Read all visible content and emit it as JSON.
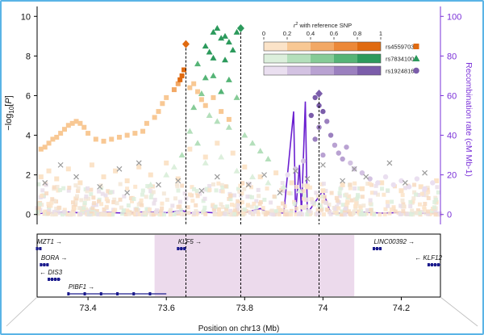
{
  "chart_data": {
    "type": "scatter",
    "title": "",
    "xlabel": "Position on chr13 (Mb)",
    "ylabel": "-log10[P]",
    "y2label": "Recombination rate (cM Mb-1)",
    "xlim": [
      73.27,
      74.3
    ],
    "ylim": [
      -0.5,
      10.5
    ],
    "y2lim": [
      -5,
      105
    ],
    "x_ticks": [
      "73.4",
      "73.6",
      "73.8",
      "74",
      "74.2"
    ],
    "x_tick_values": [
      73.4,
      73.6,
      73.8,
      74.0,
      74.2
    ],
    "y_ticks": [
      "0",
      "2",
      "4",
      "6",
      "8",
      "10"
    ],
    "y_tick_values": [
      0,
      2,
      4,
      6,
      8,
      10
    ],
    "y2_ticks": [
      "0",
      "20",
      "40",
      "60",
      "80",
      "100"
    ],
    "y2_tick_values": [
      0,
      20,
      40,
      60,
      80,
      100
    ],
    "grid": false,
    "legend": {
      "title": "r2 with reference SNP",
      "placement": "top-right",
      "scale_ticks": [
        "0",
        "0.2",
        "0.4",
        "0.6",
        "0.8",
        "1"
      ],
      "entries": [
        {
          "name": "rs45597035",
          "shape": "square",
          "colors": [
            "#fbe3c8",
            "#f8c894",
            "#f2a865",
            "#ec8838",
            "#e06a10"
          ]
        },
        {
          "name": "rs78341008",
          "shape": "triangle",
          "colors": [
            "#dcefdc",
            "#b4dfbb",
            "#86cb97",
            "#55b476",
            "#2c9a5c"
          ]
        },
        {
          "name": "rs1924816",
          "shape": "circle",
          "colors": [
            "#eadff0",
            "#d3c2e2",
            "#b9a2d2",
            "#9b80bf",
            "#7b5daa"
          ]
        }
      ]
    },
    "reference_snps": [
      {
        "name": "rs45597035",
        "x": 73.65,
        "y": 8.6,
        "color": "#e06a10",
        "shape": "diamond"
      },
      {
        "name": "rs78341008",
        "x": 73.79,
        "y": 9.4,
        "color": "#2c9a5c",
        "shape": "diamond"
      },
      {
        "name": "rs1924816",
        "x": 73.99,
        "y": 6.1,
        "color": "#7b5daa",
        "shape": "diamond"
      }
    ],
    "series": [
      {
        "name": "rs45597035 locus",
        "shape": "square",
        "points": [
          [
            73.28,
            3.3,
            0.3
          ],
          [
            73.29,
            3.4,
            0.3
          ],
          [
            73.3,
            3.6,
            0.3
          ],
          [
            73.31,
            3.8,
            0.3
          ],
          [
            73.32,
            3.9,
            0.3
          ],
          [
            73.33,
            4.1,
            0.3
          ],
          [
            73.34,
            4.3,
            0.3
          ],
          [
            73.35,
            4.5,
            0.3
          ],
          [
            73.36,
            4.6,
            0.3
          ],
          [
            73.37,
            4.7,
            0.3
          ],
          [
            73.38,
            4.6,
            0.3
          ],
          [
            73.39,
            4.4,
            0.3
          ],
          [
            73.4,
            4.1,
            0.3
          ],
          [
            73.42,
            3.8,
            0.3
          ],
          [
            73.44,
            3.7,
            0.3
          ],
          [
            73.46,
            3.8,
            0.3
          ],
          [
            73.48,
            3.9,
            0.3
          ],
          [
            73.5,
            4.0,
            0.3
          ],
          [
            73.52,
            4.1,
            0.3
          ],
          [
            73.54,
            4.2,
            0.3
          ],
          [
            73.55,
            4.6,
            0.3
          ],
          [
            73.57,
            4.9,
            0.3
          ],
          [
            73.58,
            5.2,
            0.3
          ],
          [
            73.59,
            5.6,
            0.3
          ],
          [
            73.6,
            5.9,
            0.3
          ],
          [
            73.62,
            6.3,
            0.4
          ],
          [
            73.63,
            6.6,
            0.5
          ],
          [
            73.64,
            7.0,
            0.9
          ],
          [
            73.645,
            7.3,
            0.9
          ],
          [
            73.635,
            6.8,
            0.9
          ],
          [
            73.66,
            6.4,
            0.3
          ],
          [
            73.67,
            6.6,
            0.3
          ],
          [
            73.68,
            6.2,
            0.3
          ],
          [
            73.69,
            5.8,
            0.3
          ],
          [
            73.7,
            5.5,
            0.3
          ],
          [
            73.72,
            5.9,
            0.3
          ],
          [
            73.74,
            5.2,
            0.3
          ],
          [
            73.76,
            4.8,
            0.3
          ],
          [
            73.28,
            1.9,
            0.1
          ],
          [
            73.3,
            2.2,
            0.1
          ],
          [
            73.32,
            1.8,
            0.1
          ],
          [
            73.35,
            2.3,
            0.1
          ],
          [
            73.38,
            1.6,
            0.1
          ],
          [
            73.41,
            2.5,
            0.1
          ],
          [
            73.44,
            1.9,
            0.1
          ],
          [
            73.47,
            2.2,
            0.1
          ],
          [
            73.5,
            1.7,
            0.1
          ],
          [
            73.53,
            2.4,
            0.1
          ],
          [
            73.56,
            2.0,
            0.1
          ],
          [
            73.6,
            2.6,
            0.1
          ],
          [
            73.63,
            1.8,
            0.1
          ],
          [
            73.66,
            3.3,
            0.1
          ],
          [
            73.7,
            2.9,
            0.1
          ],
          [
            73.73,
            3.6,
            0.1
          ],
          [
            73.77,
            3.1,
            0.1
          ],
          [
            73.8,
            2.4,
            0.1
          ],
          [
            73.84,
            1.9,
            0.1
          ],
          [
            73.88,
            2.1,
            0.1
          ],
          [
            73.92,
            1.6,
            0.1
          ],
          [
            73.96,
            1.4,
            0.1
          ],
          [
            74.0,
            1.2,
            0.1
          ],
          [
            74.05,
            1.5,
            0.1
          ],
          [
            74.1,
            1.3,
            0.1
          ],
          [
            74.15,
            1.6,
            0.1
          ],
          [
            74.2,
            1.2,
            0.1
          ],
          [
            74.25,
            1.4,
            0.1
          ],
          [
            74.29,
            1.7,
            0.1
          ]
        ]
      },
      {
        "name": "rs78341008 locus",
        "shape": "triangle",
        "points": [
          [
            73.72,
            9.2,
            0.9
          ],
          [
            73.73,
            9.4,
            0.9
          ],
          [
            73.74,
            8.9,
            0.9
          ],
          [
            73.75,
            9.0,
            0.9
          ],
          [
            73.76,
            8.7,
            0.9
          ],
          [
            73.77,
            8.3,
            0.9
          ],
          [
            73.78,
            9.2,
            0.9
          ],
          [
            73.71,
            8.2,
            0.9
          ],
          [
            73.7,
            8.5,
            0.9
          ],
          [
            73.72,
            7.9,
            0.9
          ],
          [
            73.75,
            7.8,
            0.9
          ],
          [
            73.68,
            7.6,
            0.7
          ],
          [
            73.7,
            6.9,
            0.7
          ],
          [
            73.72,
            7.0,
            0.7
          ],
          [
            73.74,
            6.2,
            0.7
          ],
          [
            73.76,
            6.8,
            0.7
          ],
          [
            73.78,
            5.9,
            0.5
          ],
          [
            73.69,
            6.1,
            0.5
          ],
          [
            73.67,
            5.4,
            0.5
          ],
          [
            73.71,
            5.0,
            0.3
          ],
          [
            73.73,
            4.7,
            0.3
          ],
          [
            73.76,
            4.4,
            0.3
          ],
          [
            73.8,
            4.0,
            0.3
          ],
          [
            73.82,
            3.6,
            0.3
          ],
          [
            73.84,
            3.2,
            0.3
          ],
          [
            73.86,
            2.8,
            0.3
          ],
          [
            73.66,
            4.2,
            0.3
          ],
          [
            73.68,
            3.6,
            0.3
          ],
          [
            73.64,
            3.0,
            0.3
          ],
          [
            73.7,
            2.6,
            0.1
          ],
          [
            73.74,
            2.9,
            0.1
          ],
          [
            73.78,
            2.2,
            0.1
          ],
          [
            73.82,
            1.9,
            0.1
          ],
          [
            73.86,
            1.6,
            0.1
          ],
          [
            73.9,
            1.4,
            0.1
          ],
          [
            73.94,
            1.2,
            0.1
          ],
          [
            73.6,
            2.0,
            0.1
          ],
          [
            73.62,
            2.4,
            0.1
          ],
          [
            73.56,
            1.5,
            0.1
          ]
        ]
      },
      {
        "name": "rs1924816 locus",
        "shape": "circle",
        "points": [
          [
            73.98,
            5.9,
            0.9
          ],
          [
            73.99,
            5.5,
            0.9
          ],
          [
            74.0,
            5.2,
            0.9
          ],
          [
            73.97,
            5.0,
            0.9
          ],
          [
            74.01,
            4.7,
            0.7
          ],
          [
            73.99,
            4.4,
            0.7
          ],
          [
            74.02,
            4.0,
            0.7
          ],
          [
            73.98,
            3.8,
            0.7
          ],
          [
            74.03,
            3.5,
            0.5
          ],
          [
            74.04,
            3.1,
            0.5
          ],
          [
            74.05,
            2.8,
            0.5
          ],
          [
            74.06,
            3.4,
            0.5
          ],
          [
            74.0,
            3.0,
            0.5
          ],
          [
            74.07,
            2.6,
            0.3
          ],
          [
            74.08,
            2.3,
            0.3
          ],
          [
            74.1,
            2.1,
            0.3
          ],
          [
            74.12,
            1.8,
            0.3
          ],
          [
            73.95,
            2.7,
            0.3
          ],
          [
            73.93,
            2.3,
            0.3
          ],
          [
            73.91,
            2.0,
            0.1
          ],
          [
            74.14,
            1.6,
            0.1
          ],
          [
            74.16,
            1.9,
            0.1
          ],
          [
            74.18,
            1.5,
            0.1
          ],
          [
            74.2,
            1.7,
            0.1
          ],
          [
            74.22,
            1.4,
            0.1
          ],
          [
            74.24,
            1.8,
            0.1
          ],
          [
            74.26,
            1.3,
            0.1
          ],
          [
            74.28,
            1.6,
            0.1
          ]
        ]
      },
      {
        "name": "unlinked",
        "shape": "cross",
        "points": [
          [
            73.29,
            1.6
          ],
          [
            73.33,
            2.5
          ],
          [
            73.37,
            1.9
          ],
          [
            73.43,
            1.4
          ],
          [
            73.48,
            2.3
          ],
          [
            73.5,
            1.1
          ],
          [
            73.53,
            2.6
          ],
          [
            73.58,
            1.5
          ],
          [
            73.63,
            1.7
          ],
          [
            73.69,
            1.2
          ],
          [
            73.73,
            1.9
          ],
          [
            73.81,
            1.5
          ],
          [
            73.85,
            2.0
          ],
          [
            73.89,
            1.1
          ],
          [
            73.93,
            2.2
          ],
          [
            73.96,
            1.8
          ],
          [
            74.0,
            2.5
          ],
          [
            74.05,
            1.7
          ],
          [
            74.08,
            2.3
          ],
          [
            74.11,
            1.9
          ],
          [
            74.17,
            2.6
          ],
          [
            74.21,
            1.6
          ],
          [
            74.26,
            2.1
          ]
        ]
      }
    ],
    "recombination": {
      "name": "Recombination rate",
      "color": "#6a1fd0",
      "points": [
        [
          73.27,
          0.5
        ],
        [
          73.3,
          0.8
        ],
        [
          73.35,
          1.2
        ],
        [
          73.4,
          0.6
        ],
        [
          73.45,
          1.0
        ],
        [
          73.5,
          0.7
        ],
        [
          73.55,
          1.3
        ],
        [
          73.6,
          0.9
        ],
        [
          73.64,
          2.0
        ],
        [
          73.66,
          0.8
        ],
        [
          73.7,
          1.1
        ],
        [
          73.75,
          0.6
        ],
        [
          73.8,
          0.9
        ],
        [
          73.84,
          3.0
        ],
        [
          73.86,
          1.0
        ],
        [
          73.9,
          0.8
        ],
        [
          73.925,
          52
        ],
        [
          73.93,
          0.5
        ],
        [
          73.94,
          25
        ],
        [
          73.945,
          0.5
        ],
        [
          73.955,
          57
        ],
        [
          73.96,
          0.6
        ],
        [
          74.0,
          12
        ],
        [
          74.02,
          0.5
        ],
        [
          74.05,
          0.8
        ],
        [
          74.1,
          1.2
        ],
        [
          74.15,
          0.7
        ],
        [
          74.2,
          1.0
        ],
        [
          74.25,
          0.6
        ],
        [
          74.3,
          0.9
        ]
      ]
    },
    "vlines": [
      73.65,
      73.79,
      73.99
    ],
    "genes_panel": {
      "highlight_region": [
        73.57,
        74.08
      ],
      "genes": [
        {
          "name": "MZT1",
          "start": 73.27,
          "end": 73.28,
          "strand": "+",
          "row": 0,
          "label": "MZT1"
        },
        {
          "name": "BORA",
          "start": 73.28,
          "end": 73.3,
          "strand": "+",
          "row": 1,
          "label": "BORA"
        },
        {
          "name": "DIS3",
          "start": 73.3,
          "end": 73.33,
          "strand": "-",
          "row": 2,
          "label": "DIS3"
        },
        {
          "name": "PIBF1",
          "start": 73.35,
          "end": 73.6,
          "strand": "+",
          "row": 3,
          "label": "PIBF1"
        },
        {
          "name": "KLF5",
          "start": 73.63,
          "end": 73.65,
          "strand": "+",
          "row": 0,
          "label": "KLF5"
        },
        {
          "name": "LINC00392",
          "start": 74.13,
          "end": 74.15,
          "strand": "+",
          "row": 0,
          "label": "LINC00392"
        },
        {
          "name": "KLF12",
          "start": 74.27,
          "end": 74.3,
          "strand": "-",
          "row": 1,
          "label": "KLF12"
        }
      ]
    }
  }
}
